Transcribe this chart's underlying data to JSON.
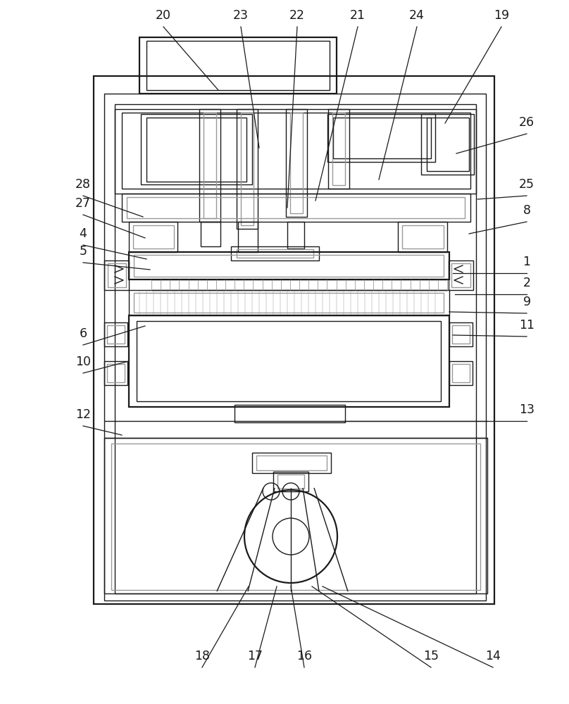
{
  "bg": "#ffffff",
  "lc": "#1a1a1a",
  "gc": "#999999",
  "lw": 1.0,
  "lw2": 1.6,
  "labels": [
    [
      "20",
      232,
      38,
      310,
      128
    ],
    [
      "23",
      342,
      38,
      368,
      210
    ],
    [
      "22",
      422,
      38,
      408,
      295
    ],
    [
      "21",
      508,
      38,
      448,
      285
    ],
    [
      "24",
      592,
      38,
      538,
      255
    ],
    [
      "19",
      712,
      38,
      632,
      175
    ],
    [
      "26",
      748,
      190,
      648,
      218
    ],
    [
      "28",
      118,
      278,
      203,
      308
    ],
    [
      "27",
      118,
      305,
      206,
      338
    ],
    [
      "25",
      748,
      278,
      678,
      283
    ],
    [
      "8",
      748,
      315,
      666,
      332
    ],
    [
      "4",
      118,
      348,
      208,
      368
    ],
    [
      "5",
      118,
      373,
      213,
      383
    ],
    [
      "1",
      748,
      388,
      643,
      388
    ],
    [
      "2",
      748,
      418,
      646,
      418
    ],
    [
      "9",
      748,
      445,
      638,
      443
    ],
    [
      "6",
      118,
      490,
      206,
      463
    ],
    [
      "11",
      748,
      478,
      643,
      476
    ],
    [
      "10",
      118,
      530,
      183,
      513
    ],
    [
      "12",
      118,
      605,
      173,
      618
    ],
    [
      "13",
      748,
      598,
      488,
      598
    ],
    [
      "14",
      700,
      948,
      458,
      833
    ],
    [
      "15",
      612,
      948,
      443,
      833
    ],
    [
      "16",
      432,
      948,
      413,
      833
    ],
    [
      "17",
      362,
      948,
      393,
      833
    ],
    [
      "18",
      287,
      948,
      353,
      833
    ]
  ]
}
